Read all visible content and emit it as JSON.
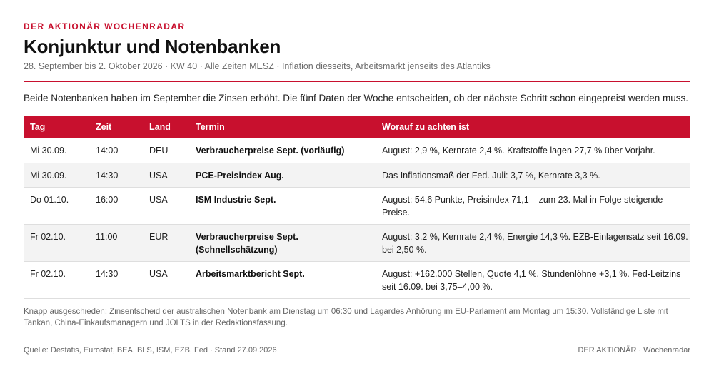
{
  "header": {
    "kicker": "DER AKTIONÄR WOCHENRADAR",
    "title": "Konjunktur und Notenbanken",
    "subtitle": "28. September bis 2. Oktober 2026 · KW 40 · Alle Zeiten MESZ · Inflation diesseits, Arbeitsmarkt jenseits des Atlantiks"
  },
  "intro": "Beide Notenbanken haben im September die Zinsen erhöht. Die fünf Daten der Woche entscheiden, ob der nächste Schritt schon eingepreist werden muss.",
  "table": {
    "headers": {
      "tag": "Tag",
      "zeit": "Zeit",
      "land": "Land",
      "termin": "Termin",
      "achten": "Worauf zu achten ist"
    },
    "rows": [
      {
        "tag": "Mi 30.09.",
        "zeit": "14:00",
        "land": "DEU",
        "termin": "Verbraucherpreise Sept. (vorläufig)",
        "achten": "August: 2,9 %, Kernrate 2,4 %. Kraftstoffe lagen 27,7 % über Vorjahr."
      },
      {
        "tag": "Mi 30.09.",
        "zeit": "14:30",
        "land": "USA",
        "termin": "PCE-Preisindex Aug.",
        "achten": "Das Inflationsmaß der Fed. Juli: 3,7 %, Kernrate 3,3 %."
      },
      {
        "tag": "Do 01.10.",
        "zeit": "16:00",
        "land": "USA",
        "termin": "ISM Industrie Sept.",
        "achten": "August: 54,6 Punkte, Preisindex 71,1 – zum 23. Mal in Folge steigende Preise."
      },
      {
        "tag": "Fr 02.10.",
        "zeit": "11:00",
        "land": "EUR",
        "termin": "Verbraucherpreise Sept. (Schnellschätzung)",
        "achten": "August: 3,2 %, Kernrate 2,4 %, Energie 14,3 %. EZB-Einlagensatz seit 16.09. bei 2,50 %."
      },
      {
        "tag": "Fr 02.10.",
        "zeit": "14:30",
        "land": "USA",
        "termin": "Arbeitsmarktbericht Sept.",
        "achten": "August: +162.000 Stellen, Quote 4,1 %, Stundenlöhne +3,1 %. Fed-Leitzins seit 16.09. bei 3,75–4,00 %."
      }
    ]
  },
  "note": "Knapp ausgeschieden: Zinsentscheid der australischen Notenbank am Dienstag um 06:30 und Lagardes Anhörung im EU-Parlament am Montag um 15:30. Vollständige Liste mit Tankan, China-Einkaufsmanagern und JOLTS in der Redaktionsfassung.",
  "footer": {
    "source": "Quelle: Destatis, Eurostat, BEA, BLS, ISM, EZB, Fed · Stand 27.09.2026",
    "brand": "DER AKTIONÄR · Wochenradar"
  },
  "colors": {
    "accent": "#c8102e",
    "text": "#1b1b1b",
    "muted": "#6b6b6b",
    "row_alt": "#f3f3f3"
  }
}
